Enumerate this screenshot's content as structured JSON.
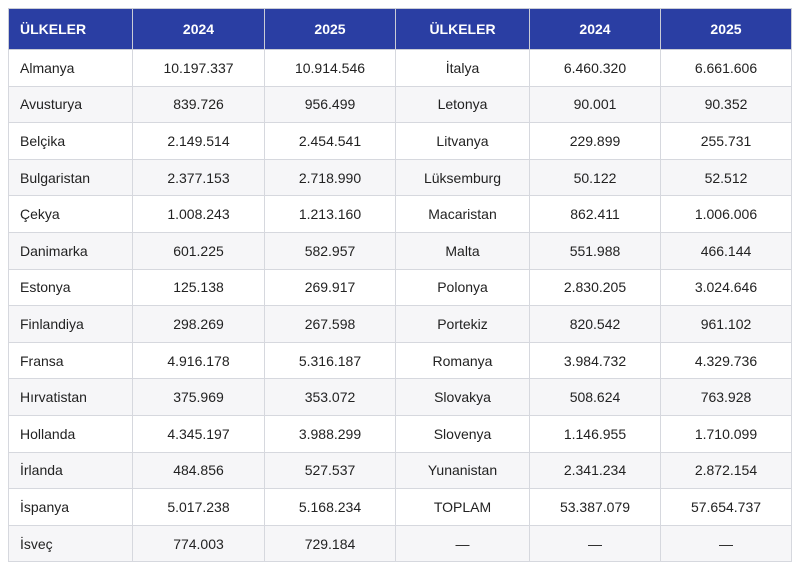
{
  "headers": [
    "ÜLKELER",
    "2024",
    "2025",
    "ÜLKELER",
    "2024",
    "2025"
  ],
  "rows": [
    [
      "Almanya",
      "10.197.337",
      "10.914.546",
      "İtalya",
      "6.460.320",
      "6.661.606"
    ],
    [
      "Avusturya",
      "839.726",
      "956.499",
      "Letonya",
      "90.001",
      "90.352"
    ],
    [
      "Belçika",
      "2.149.514",
      "2.454.541",
      "Litvanya",
      "229.899",
      "255.731"
    ],
    [
      "Bulgaristan",
      "2.377.153",
      "2.718.990",
      "Lüksemburg",
      "50.122",
      "52.512"
    ],
    [
      "Çekya",
      "1.008.243",
      "1.213.160",
      "Macaristan",
      "862.411",
      "1.006.006"
    ],
    [
      "Danimarka",
      "601.225",
      "582.957",
      "Malta",
      "551.988",
      "466.144"
    ],
    [
      "Estonya",
      "125.138",
      "269.917",
      "Polonya",
      "2.830.205",
      "3.024.646"
    ],
    [
      "Finlandiya",
      "298.269",
      "267.598",
      "Portekiz",
      "820.542",
      "961.102"
    ],
    [
      "Fransa",
      "4.916.178",
      "5.316.187",
      "Romanya",
      "3.984.732",
      "4.329.736"
    ],
    [
      "Hırvatistan",
      "375.969",
      "353.072",
      "Slovakya",
      "508.624",
      "763.928"
    ],
    [
      "Hollanda",
      "4.345.197",
      "3.988.299",
      "Slovenya",
      "1.146.955",
      "1.710.099"
    ],
    [
      "İrlanda",
      "484.856",
      "527.537",
      "Yunanistan",
      "2.341.234",
      "2.872.154"
    ],
    [
      "İspanya",
      "5.017.238",
      "5.168.234",
      "TOPLAM",
      "53.387.079",
      "57.654.737"
    ],
    [
      "İsveç",
      "774.003",
      "729.184",
      "—",
      "—",
      "—"
    ]
  ],
  "colors": {
    "header_bg": "#2a3ea3",
    "header_text": "#ffffff",
    "row_alt_bg": "#f6f6f8",
    "border": "#d6d8de"
  }
}
